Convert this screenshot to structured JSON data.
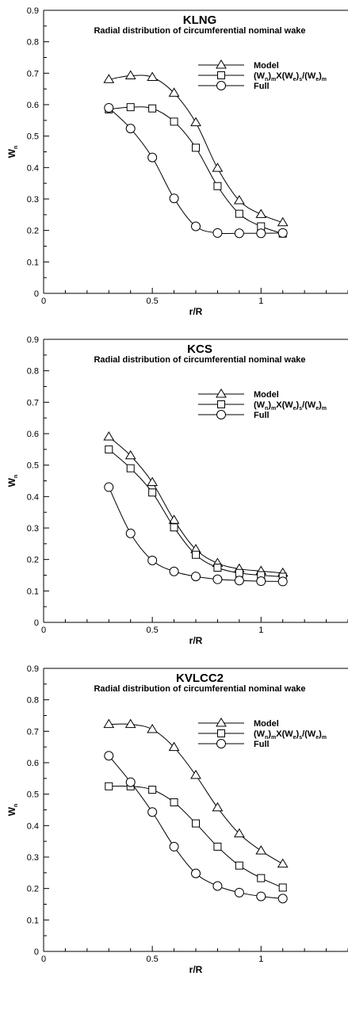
{
  "chart_data": [
    {
      "type": "line",
      "title": "KLNG",
      "subtitle": "Radial distribution of circumferential nominal wake",
      "xlabel": "r/R",
      "ylabel": {
        "main": "W",
        "sub": "n"
      },
      "xlim": [
        0,
        1.4
      ],
      "ylim": [
        0,
        0.9
      ],
      "xticks": [
        "0",
        "0.5",
        "1"
      ],
      "yticks": [
        "0",
        "0.1",
        "0.2",
        "0.3",
        "0.4",
        "0.5",
        "0.6",
        "0.7",
        "0.8",
        "0.9"
      ],
      "x": [
        0.3,
        0.4,
        0.5,
        0.6,
        0.7,
        0.8,
        0.9,
        1.0,
        1.1
      ],
      "series": [
        {
          "name": "Model",
          "marker": "triangle",
          "values": [
            0.68,
            0.692,
            0.687,
            0.637,
            0.543,
            0.398,
            0.295,
            0.251,
            0.225
          ]
        },
        {
          "name": "(Wn)mX(We)s/(We)m",
          "marker": "square",
          "values": [
            0.585,
            0.592,
            0.588,
            0.546,
            0.463,
            0.341,
            0.253,
            0.213,
            0.19
          ]
        },
        {
          "name": "Full",
          "marker": "circle",
          "values": [
            0.59,
            0.524,
            0.432,
            0.302,
            0.213,
            0.192,
            0.191,
            0.191,
            0.192
          ]
        }
      ],
      "legend_position": "top-right"
    },
    {
      "type": "line",
      "title": "KCS",
      "subtitle": "Radial distribution of circumferential nominal wake",
      "xlabel": "r/R",
      "ylabel": {
        "main": "W",
        "sub": "n"
      },
      "xlim": [
        0,
        1.4
      ],
      "ylim": [
        0,
        0.9
      ],
      "xticks": [
        "0",
        "0.5",
        "1"
      ],
      "yticks": [
        "0",
        "0.1",
        "0.2",
        "0.3",
        "0.4",
        "0.5",
        "0.6",
        "0.7",
        "0.8",
        "0.9"
      ],
      "x": [
        0.3,
        0.4,
        0.5,
        0.6,
        0.7,
        0.8,
        0.9,
        1.0,
        1.1
      ],
      "series": [
        {
          "name": "Model",
          "marker": "triangle",
          "values": [
            0.59,
            0.53,
            0.445,
            0.325,
            0.232,
            0.188,
            0.17,
            0.163,
            0.157
          ]
        },
        {
          "name": "(Wn)mX(We)s/(We)m",
          "marker": "square",
          "values": [
            0.55,
            0.49,
            0.413,
            0.302,
            0.215,
            0.174,
            0.157,
            0.15,
            0.145
          ]
        },
        {
          "name": "Full",
          "marker": "circle",
          "values": [
            0.43,
            0.283,
            0.197,
            0.162,
            0.146,
            0.137,
            0.133,
            0.131,
            0.13
          ]
        }
      ],
      "legend_position": "top-right"
    },
    {
      "type": "line",
      "title": "KVLCC2",
      "subtitle": "Radial distribution of circumferential nominal wake",
      "xlabel": "r/R",
      "ylabel": {
        "main": "W",
        "sub": "n"
      },
      "xlim": [
        0,
        1.4
      ],
      "ylim": [
        0,
        0.9
      ],
      "xticks": [
        "0",
        "0.5",
        "1"
      ],
      "yticks": [
        "0",
        "0.1",
        "0.2",
        "0.3",
        "0.4",
        "0.5",
        "0.6",
        "0.7",
        "0.8",
        "0.9"
      ],
      "x": [
        0.3,
        0.4,
        0.5,
        0.6,
        0.7,
        0.8,
        0.9,
        1.0,
        1.1
      ],
      "series": [
        {
          "name": "Model",
          "marker": "triangle",
          "values": [
            0.722,
            0.722,
            0.706,
            0.649,
            0.56,
            0.457,
            0.374,
            0.32,
            0.278
          ]
        },
        {
          "name": "(Wn)mX(We)s/(We)m",
          "marker": "square",
          "values": [
            0.525,
            0.525,
            0.514,
            0.474,
            0.407,
            0.333,
            0.273,
            0.233,
            0.203
          ]
        },
        {
          "name": "Full",
          "marker": "circle",
          "values": [
            0.622,
            0.538,
            0.443,
            0.333,
            0.248,
            0.208,
            0.187,
            0.175,
            0.168
          ]
        }
      ],
      "legend_position": "top-right"
    }
  ]
}
